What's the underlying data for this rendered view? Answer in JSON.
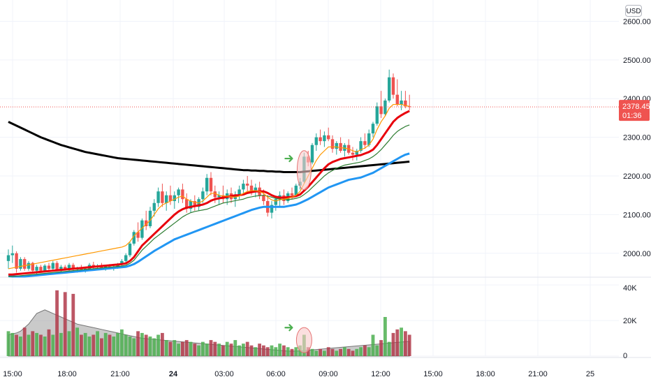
{
  "currency_button": "USD",
  "price_axis": {
    "ticks": [
      "2600.00",
      "2500.00",
      "2400.00",
      "2300.00",
      "2200.00",
      "2100.00",
      "2000.00"
    ],
    "current_price": "2378.45",
    "countdown": "01:36"
  },
  "volume_axis": {
    "ticks": [
      "40K",
      "20K",
      "0"
    ]
  },
  "time_axis": {
    "ticks": [
      "15:00",
      "18:00",
      "21:00",
      "24",
      "03:00",
      "06:00",
      "09:00",
      "12:00",
      "15:00",
      "18:00",
      "21:00",
      "25"
    ],
    "bold_tick": "24"
  },
  "colors": {
    "up": "#26a69a",
    "up_volume": "#4caf50",
    "down": "#ef5350",
    "down_volume": "#b2394a",
    "ma_fast": "#ff9800",
    "ma_red": "#e8000b",
    "ma_green": "#2e7d32",
    "ma_blue": "#2196f3",
    "ma_black": "#000000",
    "price_tag": "#ef5350",
    "grid": "#f0f3fa",
    "annotation_fill": "#f8c9c9",
    "annotation_stroke": "#e57373",
    "arrow": "#4caf50",
    "volume_ma_fill": "#9e9e9e"
  },
  "chart_data": {
    "type": "candlestick",
    "ylim": [
      1940,
      2655
    ],
    "volume_ylim": [
      0,
      44000
    ],
    "candles": [
      [
        1980,
        2010,
        1960,
        1995
      ],
      [
        1995,
        2020,
        1975,
        2000
      ],
      [
        2000,
        2005,
        1950,
        1960
      ],
      [
        1960,
        1990,
        1955,
        1985
      ],
      [
        1985,
        1990,
        1955,
        1960
      ],
      [
        1960,
        1980,
        1955,
        1975
      ],
      [
        1975,
        1978,
        1950,
        1955
      ],
      [
        1955,
        1970,
        1945,
        1965
      ],
      [
        1965,
        1970,
        1950,
        1955
      ],
      [
        1955,
        1972,
        1950,
        1968
      ],
      [
        1968,
        1975,
        1955,
        1960
      ],
      [
        1960,
        1980,
        1955,
        1975
      ],
      [
        1975,
        1980,
        1955,
        1958
      ],
      [
        1958,
        1970,
        1950,
        1965
      ],
      [
        1965,
        1970,
        1955,
        1960
      ],
      [
        1960,
        1975,
        1952,
        1970
      ],
      [
        1970,
        1975,
        1955,
        1958
      ],
      [
        1958,
        1965,
        1950,
        1962
      ],
      [
        1962,
        1970,
        1955,
        1958
      ],
      [
        1958,
        1965,
        1950,
        1960
      ],
      [
        1960,
        1975,
        1955,
        1970
      ],
      [
        1970,
        1978,
        1960,
        1965
      ],
      [
        1965,
        1972,
        1958,
        1968
      ],
      [
        1968,
        1975,
        1960,
        1962
      ],
      [
        1962,
        1970,
        1955,
        1966
      ],
      [
        1966,
        1972,
        1958,
        1960
      ],
      [
        1960,
        1968,
        1955,
        1964
      ],
      [
        1964,
        1975,
        1960,
        1970
      ],
      [
        1970,
        1985,
        1965,
        1980
      ],
      [
        1980,
        2000,
        1975,
        1995
      ],
      [
        1995,
        2030,
        1990,
        2025
      ],
      [
        2025,
        2060,
        2020,
        2055
      ],
      [
        2055,
        2080,
        2030,
        2040
      ],
      [
        2040,
        2090,
        2035,
        2085
      ],
      [
        2085,
        2110,
        2060,
        2070
      ],
      [
        2070,
        2120,
        2065,
        2110
      ],
      [
        2110,
        2140,
        2095,
        2130
      ],
      [
        2130,
        2170,
        2120,
        2160
      ],
      [
        2160,
        2180,
        2120,
        2130
      ],
      [
        2130,
        2160,
        2110,
        2150
      ],
      [
        2150,
        2175,
        2125,
        2135
      ],
      [
        2135,
        2160,
        2115,
        2150
      ],
      [
        2150,
        2170,
        2130,
        2165
      ],
      [
        2165,
        2180,
        2130,
        2140
      ],
      [
        2140,
        2155,
        2105,
        2115
      ],
      [
        2115,
        2140,
        2105,
        2135
      ],
      [
        2135,
        2150,
        2110,
        2120
      ],
      [
        2120,
        2145,
        2110,
        2140
      ],
      [
        2140,
        2170,
        2130,
        2160
      ],
      [
        2160,
        2205,
        2150,
        2195
      ],
      [
        2195,
        2210,
        2150,
        2160
      ],
      [
        2160,
        2175,
        2130,
        2145
      ],
      [
        2145,
        2160,
        2125,
        2150
      ],
      [
        2150,
        2175,
        2130,
        2140
      ],
      [
        2140,
        2165,
        2125,
        2155
      ],
      [
        2155,
        2170,
        2130,
        2140
      ],
      [
        2140,
        2160,
        2120,
        2150
      ],
      [
        2150,
        2175,
        2140,
        2165
      ],
      [
        2165,
        2190,
        2150,
        2180
      ],
      [
        2180,
        2200,
        2160,
        2175
      ],
      [
        2175,
        2190,
        2150,
        2160
      ],
      [
        2160,
        2180,
        2145,
        2170
      ],
      [
        2170,
        2185,
        2140,
        2150
      ],
      [
        2150,
        2165,
        2125,
        2135
      ],
      [
        2135,
        2150,
        2095,
        2105
      ],
      [
        2105,
        2135,
        2090,
        2125
      ],
      [
        2125,
        2145,
        2110,
        2140
      ],
      [
        2140,
        2160,
        2120,
        2150
      ],
      [
        2150,
        2165,
        2125,
        2135
      ],
      [
        2135,
        2160,
        2130,
        2155
      ],
      [
        2155,
        2170,
        2140,
        2150
      ],
      [
        2150,
        2180,
        2145,
        2175
      ],
      [
        2175,
        2195,
        2165,
        2185
      ],
      [
        2185,
        2260,
        2180,
        2250
      ],
      [
        2250,
        2265,
        2225,
        2235
      ],
      [
        2235,
        2285,
        2230,
        2280
      ],
      [
        2280,
        2310,
        2265,
        2300
      ],
      [
        2300,
        2320,
        2280,
        2290
      ],
      [
        2290,
        2315,
        2275,
        2305
      ],
      [
        2305,
        2325,
        2290,
        2295
      ],
      [
        2295,
        2305,
        2260,
        2270
      ],
      [
        2270,
        2290,
        2255,
        2285
      ],
      [
        2285,
        2300,
        2260,
        2265
      ],
      [
        2265,
        2285,
        2250,
        2280
      ],
      [
        2280,
        2295,
        2255,
        2260
      ],
      [
        2260,
        2275,
        2240,
        2255
      ],
      [
        2255,
        2270,
        2240,
        2265
      ],
      [
        2265,
        2300,
        2260,
        2290
      ],
      [
        2290,
        2310,
        2270,
        2280
      ],
      [
        2280,
        2320,
        2275,
        2310
      ],
      [
        2310,
        2340,
        2300,
        2335
      ],
      [
        2335,
        2390,
        2330,
        2380
      ],
      [
        2380,
        2420,
        2350,
        2360
      ],
      [
        2360,
        2400,
        2355,
        2395
      ],
      [
        2395,
        2475,
        2390,
        2455
      ],
      [
        2455,
        2465,
        2400,
        2410
      ],
      [
        2410,
        2450,
        2380,
        2385
      ],
      [
        2385,
        2420,
        2370,
        2395
      ],
      [
        2395,
        2420,
        2375,
        2380
      ],
      [
        2380,
        2410,
        2370,
        2378.45
      ]
    ],
    "volume": [
      14000,
      13000,
      12000,
      11000,
      16000,
      12000,
      14000,
      13000,
      12000,
      11000,
      15000,
      12000,
      37000,
      13000,
      36000,
      14000,
      35000,
      16000,
      12000,
      13000,
      11000,
      12000,
      14000,
      10000,
      13000,
      12000,
      11000,
      13000,
      15000,
      12000,
      11000,
      10000,
      14000,
      13000,
      12000,
      11000,
      10000,
      12000,
      13000,
      9000,
      8000,
      9000,
      7000,
      8000,
      9000,
      8000,
      7000,
      6000,
      8000,
      7000,
      9000,
      8000,
      7000,
      6000,
      8000,
      7000,
      9000,
      6000,
      7000,
      8000,
      6000,
      5000,
      7000,
      6000,
      5000,
      6000,
      5000,
      7000,
      6000,
      5000,
      4000,
      5000,
      6000,
      12000,
      5000,
      4000,
      3000,
      4000,
      3000,
      5000,
      4000,
      3000,
      4000,
      5000,
      4000,
      3000,
      4000,
      5000,
      6000,
      5000,
      12000,
      6000,
      9000,
      22000,
      8000,
      13000,
      15000,
      16000,
      14000,
      12000
    ],
    "ma_fast": [
      1960,
      1962,
      1964,
      1966,
      1968,
      1970,
      1972,
      1974,
      1976,
      1978,
      1980,
      1982,
      1984,
      1986,
      1988,
      1990,
      1992,
      1994,
      1996,
      1998,
      2000,
      2002,
      2004,
      2006,
      2008,
      2010,
      2012,
      2014,
      2016,
      2020,
      2030,
      2045,
      2055,
      2065,
      2075,
      2085,
      2100,
      2115,
      2125,
      2130,
      2135,
      2140,
      2145,
      2148,
      2140,
      2135,
      2132,
      2130,
      2135,
      2145,
      2155,
      2155,
      2150,
      2148,
      2148,
      2146,
      2145,
      2148,
      2155,
      2160,
      2162,
      2162,
      2160,
      2155,
      2145,
      2138,
      2135,
      2138,
      2140,
      2142,
      2145,
      2150,
      2160,
      2180,
      2200,
      2220,
      2240,
      2255,
      2265,
      2275,
      2275,
      2275,
      2273,
      2272,
      2270,
      2265,
      2262,
      2268,
      2272,
      2280,
      2295,
      2320,
      2340,
      2355,
      2375,
      2385,
      2385,
      2385,
      2382,
      2380
    ],
    "ma_red": [
      1945,
      1945,
      1946,
      1947,
      1948,
      1949,
      1950,
      1951,
      1952,
      1953,
      1954,
      1955,
      1956,
      1957,
      1958,
      1959,
      1960,
      1961,
      1962,
      1963,
      1964,
      1965,
      1966,
      1967,
      1968,
      1969,
      1970,
      1971,
      1972,
      1974,
      1980,
      1990,
      2005,
      2020,
      2030,
      2040,
      2050,
      2060,
      2070,
      2080,
      2090,
      2100,
      2108,
      2114,
      2118,
      2120,
      2122,
      2124,
      2126,
      2130,
      2136,
      2140,
      2142,
      2144,
      2146,
      2148,
      2150,
      2150,
      2152,
      2156,
      2158,
      2160,
      2160,
      2160,
      2156,
      2150,
      2146,
      2144,
      2144,
      2145,
      2146,
      2148,
      2152,
      2162,
      2172,
      2184,
      2196,
      2208,
      2220,
      2230,
      2236,
      2240,
      2244,
      2246,
      2248,
      2250,
      2252,
      2254,
      2258,
      2262,
      2268,
      2280,
      2295,
      2310,
      2325,
      2340,
      2350,
      2357,
      2363,
      2368
    ],
    "ma_green": [
      1940,
      1940,
      1941,
      1942,
      1943,
      1944,
      1945,
      1946,
      1947,
      1948,
      1949,
      1950,
      1951,
      1952,
      1953,
      1954,
      1955,
      1956,
      1957,
      1958,
      1959,
      1960,
      1961,
      1962,
      1963,
      1964,
      1965,
      1966,
      1967,
      1969,
      1974,
      1982,
      1995,
      2008,
      2018,
      2028,
      2038,
      2046,
      2054,
      2062,
      2070,
      2078,
      2086,
      2094,
      2100,
      2105,
      2108,
      2110,
      2112,
      2114,
      2118,
      2122,
      2126,
      2130,
      2132,
      2134,
      2136,
      2138,
      2140,
      2144,
      2146,
      2148,
      2149,
      2150,
      2148,
      2145,
      2142,
      2140,
      2139,
      2139,
      2140,
      2142,
      2145,
      2152,
      2160,
      2170,
      2180,
      2190,
      2200,
      2208,
      2214,
      2220,
      2224,
      2228,
      2230,
      2232,
      2234,
      2236,
      2240,
      2244,
      2250,
      2258,
      2268,
      2280,
      2292,
      2305,
      2315,
      2322,
      2328,
      2332
    ],
    "ma_blue": [
      1941,
      1940,
      1940,
      1940,
      1940,
      1941,
      1942,
      1943,
      1944,
      1945,
      1946,
      1947,
      1948,
      1949,
      1950,
      1951,
      1952,
      1953,
      1954,
      1955,
      1956,
      1957,
      1958,
      1959,
      1960,
      1961,
      1962,
      1963,
      1964,
      1965,
      1968,
      1972,
      1978,
      1985,
      1992,
      1999,
      2006,
      2012,
      2018,
      2024,
      2030,
      2036,
      2040,
      2044,
      2048,
      2052,
      2056,
      2060,
      2064,
      2068,
      2072,
      2076,
      2080,
      2084,
      2088,
      2092,
      2096,
      2100,
      2104,
      2108,
      2112,
      2115,
      2118,
      2120,
      2120,
      2120,
      2120,
      2120,
      2120,
      2122,
      2124,
      2126,
      2130,
      2135,
      2140,
      2146,
      2152,
      2158,
      2164,
      2170,
      2174,
      2178,
      2182,
      2186,
      2190,
      2192,
      2194,
      2196,
      2200,
      2204,
      2208,
      2214,
      2220,
      2226,
      2232,
      2238,
      2244,
      2250,
      2255,
      2258
    ],
    "ma_black": [
      2340,
      2335,
      2330,
      2325,
      2320,
      2315,
      2310,
      2305,
      2300,
      2296,
      2292,
      2288,
      2284,
      2280,
      2277,
      2274,
      2271,
      2268,
      2265,
      2262,
      2260,
      2258,
      2256,
      2254,
      2252,
      2250,
      2248,
      2246,
      2245,
      2244,
      2243,
      2242,
      2241,
      2240,
      2239,
      2238,
      2237,
      2236,
      2235,
      2234,
      2233,
      2232,
      2231,
      2230,
      2229,
      2228,
      2227,
      2226,
      2225,
      2224,
      2223,
      2222,
      2221,
      2220,
      2219,
      2218,
      2217,
      2216,
      2215,
      2215,
      2214,
      2214,
      2213,
      2213,
      2212,
      2212,
      2211,
      2211,
      2210,
      2210,
      2210,
      2210,
      2210,
      2211,
      2212,
      2213,
      2214,
      2215,
      2216,
      2217,
      2218,
      2219,
      2220,
      2221,
      2222,
      2223,
      2224,
      2225,
      2226,
      2227,
      2228,
      2229,
      2230,
      2231,
      2232,
      2233,
      2234,
      2235,
      2236,
      2237
    ],
    "volume_ma": [
      12000,
      12500,
      13000,
      14000,
      16000,
      18000,
      21000,
      24000,
      25000,
      26000,
      25000,
      24000,
      23000,
      22000,
      21000,
      20000,
      19000,
      18000,
      17500,
      17000,
      16500,
      16000,
      15500,
      15000,
      14500,
      14000,
      13500,
      13000,
      12500,
      12000,
      11500,
      11000,
      10500,
      10000,
      9800,
      9600,
      9400,
      9200,
      9000,
      8800,
      8600,
      8400,
      8200,
      8000,
      7800,
      7600,
      7400,
      7200,
      7000,
      6800,
      6600,
      6400,
      6200,
      6000,
      5800,
      5600,
      5400,
      5200,
      5000,
      4800,
      4600,
      4400,
      4200,
      4000,
      3800,
      3600,
      3400,
      3200,
      3000,
      2800,
      2800,
      2800,
      2900,
      3100,
      3300,
      3500,
      3700,
      3900,
      4100,
      4300,
      4500,
      4700,
      4900,
      5100,
      5300,
      5500,
      5700,
      5900,
      6100,
      6300,
      6500,
      6700,
      6900,
      7100,
      7300,
      7500,
      7700,
      7900,
      8100,
      8300
    ],
    "annotations": [
      {
        "type": "ellipse",
        "pane": "price",
        "candle_index": 73
      },
      {
        "type": "ellipse",
        "pane": "volume",
        "candle_index": 73
      },
      {
        "type": "arrow",
        "pane": "price",
        "candle_index": 73
      },
      {
        "type": "arrow",
        "pane": "volume",
        "candle_index": 73
      }
    ]
  }
}
